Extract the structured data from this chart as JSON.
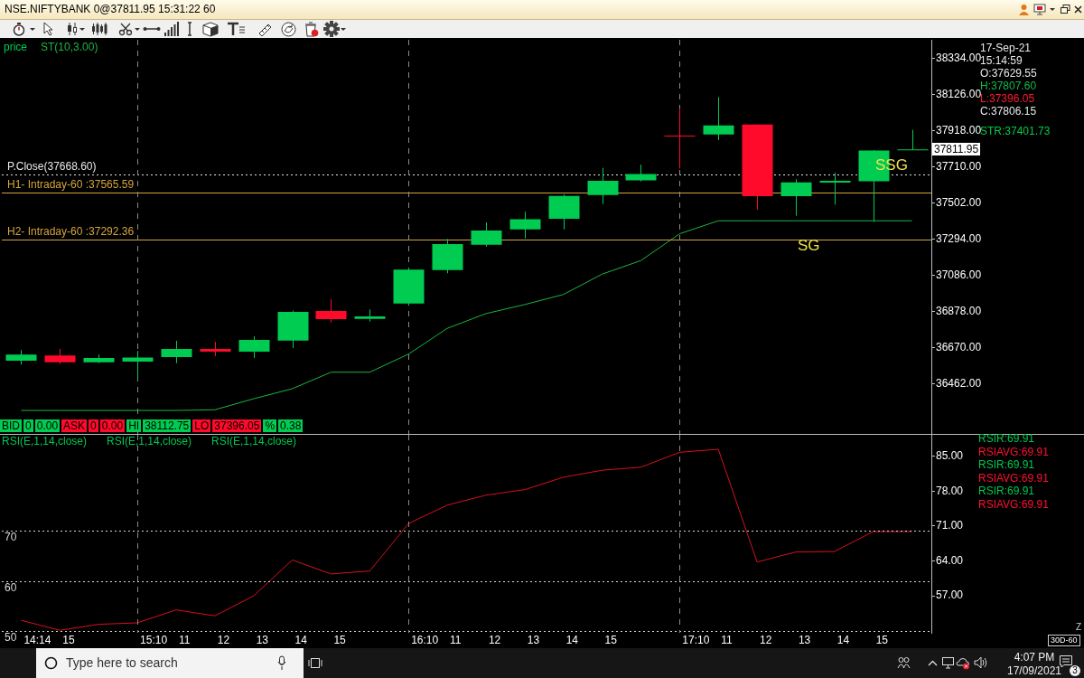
{
  "chart_data": [
    {
      "type": "candlestick",
      "title": "NSE.NIFTYBANK 0@37811.95 15:31:22 60",
      "categories": [
        "14:14",
        "15",
        null,
        "15:10",
        "11",
        "12",
        "13",
        "14",
        "15",
        null,
        "16:10",
        "11",
        "12",
        "13",
        "14",
        "15",
        null,
        "17:10",
        "11",
        "12",
        "13",
        "14",
        "15",
        null
      ],
      "tick_labels": "y",
      "ylim": [
        36176,
        38443
      ],
      "yticks": [
        {
          "value": 38334,
          "label": "38334.00"
        },
        {
          "value": 38126,
          "label": "38126.00"
        },
        {
          "value": 37918,
          "label": "37918.00"
        },
        {
          "value": 37710,
          "label": "37710.00"
        },
        {
          "value": 37502,
          "label": "37502.00"
        },
        {
          "value": 37294,
          "label": "37294.00"
        },
        {
          "value": 37086,
          "label": "37086.00"
        },
        {
          "value": 36878,
          "label": "36878.00"
        },
        {
          "value": 36670,
          "label": "36670.00"
        },
        {
          "value": 36462,
          "label": "36462.00"
        }
      ],
      "series": [
        {
          "name": "price",
          "type": "candlestick",
          "ohlc": [
            [
              36597,
              36658,
              36575,
              36632
            ],
            [
              36627,
              36665,
              36578,
              36588
            ],
            [
              36588,
              36632,
              36583,
              36613
            ],
            [
              36592,
              36653,
              36488,
              36616
            ],
            [
              36618,
              36712,
              36583,
              36665
            ],
            [
              36665,
              36705,
              36623,
              36649
            ],
            [
              36649,
              36738,
              36613,
              36717
            ],
            [
              36713,
              36885,
              36670,
              36878
            ],
            [
              36883,
              36951,
              36817,
              36836
            ],
            [
              36838,
              36892,
              36822,
              36852
            ],
            [
              36926,
              37133,
              36913,
              37121
            ],
            [
              37119,
              37298,
              37100,
              37268
            ],
            [
              37264,
              37393,
              37253,
              37346
            ],
            [
              37353,
              37454,
              37300,
              37411
            ],
            [
              37413,
              37554,
              37352,
              37545
            ],
            [
              37550,
              37706,
              37498,
              37632
            ],
            [
              37634,
              37725,
              37628,
              37671
            ],
            [
              37892,
              38046,
              37703,
              37888
            ],
            [
              37898,
              38113,
              37866,
              37950
            ],
            [
              37955,
              37955,
              37465,
              37543
            ],
            [
              37543,
              37641,
              37431,
              37623
            ],
            [
              37621,
              37678,
              37495,
              37632
            ],
            [
              37629.55,
              37807.6,
              37396.05,
              37806.15
            ],
            [
              37810,
              37925,
              37810,
              37811.95
            ]
          ],
          "colors": [
            "#00cc52",
            "#ff0a2a",
            "#00cc52",
            "#00cc52",
            "#00cc52",
            "#ff0a2a",
            "#00cc52",
            "#00cc52",
            "#ff0a2a",
            "#00cc52",
            "#00cc52",
            "#00cc52",
            "#00cc52",
            "#00cc52",
            "#00cc52",
            "#00cc52",
            "#00cc52",
            "#ff0a2a",
            "#00cc52",
            "#ff0a2a",
            "#00cc52",
            "#00cc52",
            "#00cc52",
            "#00cc52"
          ]
        },
        {
          "name": "ST(10,3.00)",
          "type": "line",
          "color": "#1db440",
          "values": [
            36311,
            36311,
            36311,
            36311,
            36311,
            36315,
            36378,
            36436,
            36531,
            36531,
            36635,
            36783,
            36868,
            36920,
            36978,
            37095,
            37173,
            37327,
            37402,
            37402,
            37402,
            37402,
            37402,
            37402
          ]
        }
      ],
      "legend": "top left",
      "ref_lines": [
        {
          "axis": "y",
          "value": 37668.6,
          "label": "P.Close(37668.60)",
          "color": "#e6e6e6",
          "line_style": "dotted"
        },
        {
          "axis": "y",
          "value": 37565.59,
          "label": "H1- Intraday-60 :37565.59",
          "color": "#d4a53c"
        },
        {
          "axis": "y",
          "value": 37292.36,
          "label": "H2- Intraday-60 :37292.36",
          "color": "#d4a53c"
        },
        {
          "axis": "x",
          "value": "15:10",
          "color": "#8a8a8a",
          "line_style": "dashed"
        },
        {
          "axis": "x",
          "value": "16:10",
          "color": "#8a8a8a",
          "line_style": "dashed"
        },
        {
          "axis": "x",
          "value": "17:10",
          "color": "#8a8a8a",
          "line_style": "dashed"
        }
      ],
      "annotations": [
        "BID",
        "0",
        "0.00",
        "ASK",
        "0",
        "0.00",
        "HI",
        "38112.75",
        "LO",
        "37396.05",
        "%",
        "0.38",
        "SSG",
        "SG",
        "17-Sep-21",
        "15:14:59",
        "O:37629.55",
        "H:37807.60",
        "L:37396.05",
        "C:37806.15",
        "STR:37401.73",
        "37811.95"
      ]
    },
    {
      "type": "line",
      "categories": [
        "14:14",
        "15",
        null,
        "15:10",
        "11",
        "12",
        "13",
        "14",
        "15",
        null,
        "16:10",
        "11",
        "12",
        "13",
        "14",
        "15",
        null,
        "17:10",
        "11",
        "12",
        "13",
        "14",
        "15",
        null
      ],
      "ylim": [
        49.6,
        89.3
      ],
      "yticks": [
        {
          "value": 57,
          "label": "57.00"
        },
        {
          "value": 64,
          "label": "64.00"
        },
        {
          "value": 71,
          "label": "71.00"
        },
        {
          "value": 78,
          "label": "78.00"
        },
        {
          "value": 85,
          "label": "85.00"
        }
      ],
      "series": [
        {
          "color": "#d8101e",
          "values": [
            52.1,
            50.1,
            51.3,
            51.6,
            54.2,
            53.0,
            57.0,
            64.2,
            61.4,
            62.0,
            71.5,
            75.2,
            77.2,
            78.3,
            80.8,
            82.2,
            82.8,
            85.8,
            86.4,
            63.8,
            65.8,
            65.9,
            69.9,
            69.9
          ]
        }
      ],
      "ref_lines": [
        {
          "axis": "y",
          "value": 70,
          "label": "70",
          "color": "#d8d8d8",
          "line_style": "dotted"
        },
        {
          "axis": "y",
          "value": 60,
          "label": "60",
          "color": "#d8d8d8",
          "line_style": "dotted"
        },
        {
          "axis": "y",
          "value": 50,
          "label": "50",
          "color": "#d8d8d8",
          "line_style": "dotted"
        },
        {
          "axis": "x",
          "value": "15:10",
          "color": "#8a8a8a",
          "line_style": "dashed"
        },
        {
          "axis": "x",
          "value": "16:10",
          "color": "#8a8a8a",
          "line_style": "dashed"
        },
        {
          "axis": "x",
          "value": "17:10",
          "color": "#8a8a8a",
          "line_style": "dashed"
        }
      ],
      "annotations": [
        "RSI(E,1,14,close)",
        "RSI(E,1,14,close)",
        "RSI(E,1,14,close)",
        "RSIR:69.91",
        "RSIAVG:69.91",
        "RSIR:69.91",
        "RSIAVG:69.91",
        "RSIR:69.91",
        "RSIAVG:69.91",
        "Z",
        "30D-60"
      ]
    },
    {
      "type": "other",
      "annotations": [
        "Type here to search",
        "4:07 PM",
        "17/09/2021",
        "3"
      ]
    }
  ]
}
